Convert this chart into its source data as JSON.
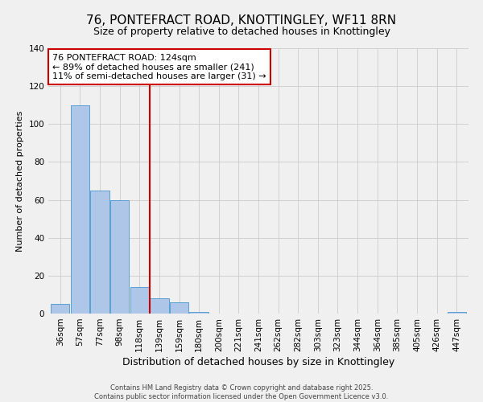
{
  "title": "76, PONTEFRACT ROAD, KNOTTINGLEY, WF11 8RN",
  "subtitle": "Size of property relative to detached houses in Knottingley",
  "xlabel": "Distribution of detached houses by size in Knottingley",
  "ylabel": "Number of detached properties",
  "categories": [
    "36sqm",
    "57sqm",
    "77sqm",
    "98sqm",
    "118sqm",
    "139sqm",
    "159sqm",
    "180sqm",
    "200sqm",
    "221sqm",
    "241sqm",
    "262sqm",
    "282sqm",
    "303sqm",
    "323sqm",
    "344sqm",
    "364sqm",
    "385sqm",
    "405sqm",
    "426sqm",
    "447sqm"
  ],
  "values": [
    5,
    110,
    65,
    60,
    14,
    8,
    6,
    1,
    0,
    0,
    0,
    0,
    0,
    0,
    0,
    0,
    0,
    0,
    0,
    0,
    1
  ],
  "bar_color": "#aec6e8",
  "bar_edge_color": "#5a9fd4",
  "background_color": "#f0f0f0",
  "grid_color": "#cccccc",
  "vline_x": 4.5,
  "vline_color": "#cc0000",
  "annotation_line1": "76 PONTEFRACT ROAD: 124sqm",
  "annotation_line2": "← 89% of detached houses are smaller (241)",
  "annotation_line3": "11% of semi-detached houses are larger (31) →",
  "annotation_box_color": "#cc0000",
  "ylim": [
    0,
    140
  ],
  "yticks": [
    0,
    20,
    40,
    60,
    80,
    100,
    120,
    140
  ],
  "footer_line1": "Contains HM Land Registry data © Crown copyright and database right 2025.",
  "footer_line2": "Contains public sector information licensed under the Open Government Licence v3.0.",
  "title_fontsize": 11,
  "subtitle_fontsize": 9,
  "xlabel_fontsize": 9,
  "ylabel_fontsize": 8,
  "tick_fontsize": 7.5,
  "annotation_fontsize": 8
}
